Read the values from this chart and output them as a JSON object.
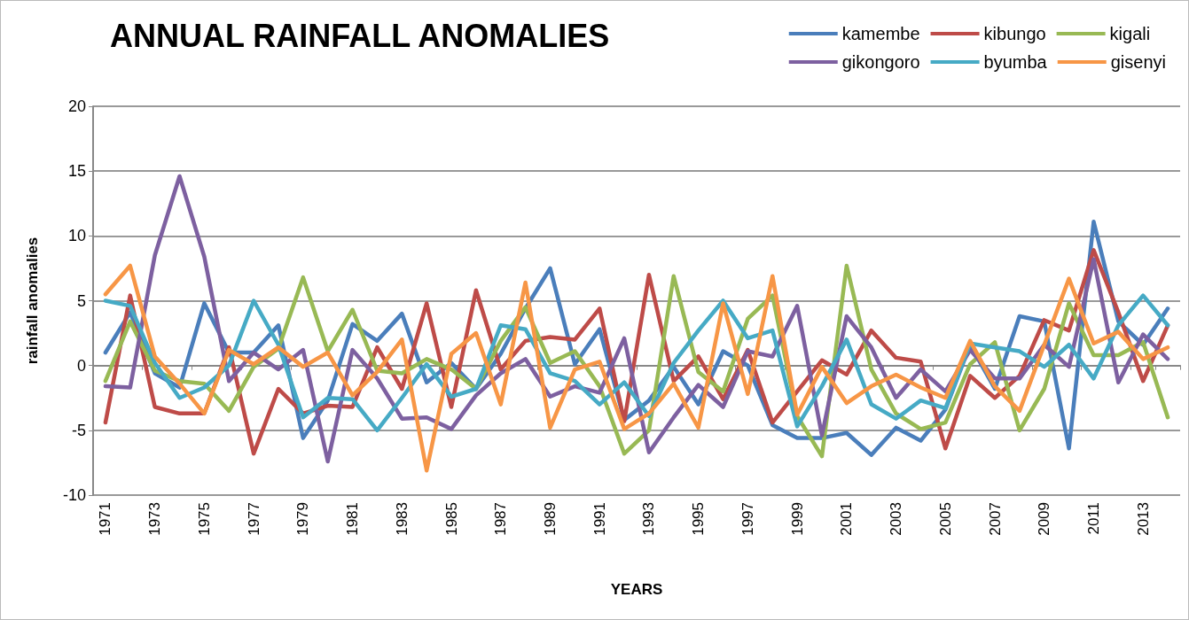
{
  "chart_data": {
    "type": "line",
    "title": "ANNUAL RAINFALL ANOMALIES",
    "xlabel": "YEARS",
    "ylabel": "rainfall anomalies",
    "categories": [
      "1971",
      null,
      "1973",
      null,
      "1975",
      null,
      "1977",
      null,
      "1979",
      null,
      "1981",
      null,
      "1983",
      null,
      "1985",
      null,
      "1987",
      null,
      "1989",
      null,
      "1991",
      null,
      "1993",
      null,
      "1995",
      null,
      "1997",
      null,
      "1999",
      null,
      "2001",
      null,
      "2003",
      null,
      "2005",
      null,
      "2007",
      null,
      "2009",
      null,
      "2011",
      null,
      "2013",
      null
    ],
    "series": [
      {
        "name": "kamembe",
        "color": "#4a7ebb",
        "values": [
          1.0,
          4.1,
          -0.6,
          -1.7,
          4.8,
          1.0,
          1.0,
          3.1,
          -5.6,
          -2.7,
          3.2,
          1.9,
          4.0,
          -1.3,
          0.2,
          -1.8,
          0.9,
          4.4,
          7.5,
          0.1,
          2.8,
          -4.2,
          -2.7,
          -0.1,
          -3.0,
          1.1,
          0.0,
          -4.6,
          -5.6,
          -5.6,
          -5.2,
          -6.9,
          -4.8,
          -5.8,
          -3.4,
          1.6,
          -1.8,
          3.8,
          3.4,
          -6.4,
          11.1,
          3.4,
          1.6,
          4.4
        ]
      },
      {
        "name": "kibungo",
        "color": "#be4b48",
        "values": [
          -4.4,
          5.4,
          -3.2,
          -3.7,
          -3.7,
          1.4,
          -6.8,
          -1.8,
          -3.7,
          -3.1,
          -3.2,
          1.4,
          -1.8,
          4.8,
          -3.2,
          5.8,
          -0.3,
          1.9,
          2.2,
          2.0,
          4.4,
          -4.3,
          7.0,
          -1.2,
          0.7,
          -2.6,
          1.2,
          -4.4,
          -2.0,
          0.4,
          -0.7,
          2.7,
          0.6,
          0.3,
          -6.4,
          -0.8,
          -2.5,
          -0.8,
          3.5,
          2.7,
          8.9,
          4.1,
          -1.2,
          3.1
        ]
      },
      {
        "name": "kigali",
        "color": "#98b954",
        "values": [
          -1.2,
          3.4,
          -0.4,
          -1.2,
          -1.4,
          -3.5,
          -0.1,
          1.3,
          6.8,
          1.1,
          4.3,
          -0.4,
          -0.6,
          0.5,
          -0.3,
          -1.8,
          1.9,
          4.5,
          0.2,
          1.1,
          -1.6,
          -6.8,
          -5.0,
          6.9,
          -0.5,
          -2.0,
          3.6,
          5.4,
          -3.9,
          -7.0,
          7.7,
          -0.3,
          -3.7,
          -4.9,
          -4.4,
          0.1,
          1.8,
          -5.0,
          -1.8,
          4.8,
          0.8,
          0.8,
          1.8,
          -4.0
        ]
      },
      {
        "name": "gikongoro",
        "color": "#7d60a0",
        "values": [
          -1.6,
          -1.7,
          8.5,
          14.6,
          8.4,
          -1.2,
          1.0,
          -0.3,
          1.2,
          -7.4,
          1.2,
          -1.0,
          -4.1,
          -4.0,
          -4.9,
          -2.3,
          -0.6,
          0.5,
          -2.4,
          -1.6,
          -2.1,
          2.1,
          -6.7,
          -4.0,
          -1.5,
          -3.2,
          1.1,
          0.7,
          4.6,
          -5.4,
          3.8,
          1.4,
          -2.5,
          -0.3,
          -2.0,
          1.2,
          -1.0,
          -1.0,
          1.6,
          -0.1,
          8.2,
          -1.3,
          2.4,
          0.5
        ]
      },
      {
        "name": "byumba",
        "color": "#46aac5",
        "values": [
          5.0,
          4.6,
          0.2,
          -2.5,
          -1.7,
          0.0,
          5.0,
          1.6,
          -4.0,
          -2.5,
          -2.6,
          -5.0,
          -2.5,
          0.1,
          -2.4,
          -1.8,
          3.1,
          2.8,
          -0.6,
          -1.2,
          -3.0,
          -1.3,
          -3.9,
          0.2,
          2.7,
          5.0,
          2.1,
          2.7,
          -4.7,
          -1.6,
          2.0,
          -3.0,
          -4.1,
          -2.7,
          -3.3,
          1.7,
          1.4,
          1.1,
          -0.1,
          1.6,
          -1.0,
          3.1,
          5.4,
          3.1
        ]
      },
      {
        "name": "gisenyi",
        "color": "#f79646",
        "values": [
          5.5,
          7.7,
          0.7,
          -1.4,
          -3.7,
          1.2,
          0.1,
          1.4,
          -0.1,
          1.0,
          -2.3,
          -0.5,
          2.0,
          -8.1,
          0.9,
          2.5,
          -3.0,
          6.4,
          -4.8,
          -0.3,
          0.3,
          -4.9,
          -3.7,
          -1.4,
          -4.8,
          4.8,
          -2.2,
          6.9,
          -3.8,
          -0.1,
          -2.9,
          -1.6,
          -0.7,
          -1.7,
          -2.5,
          1.9,
          -1.6,
          -3.5,
          1.6,
          6.7,
          1.7,
          2.6,
          0.5,
          1.4
        ]
      }
    ],
    "ylim": [
      -10,
      20
    ],
    "yticks": [
      -10,
      -5,
      0,
      5,
      10,
      15,
      20
    ],
    "grid": "y",
    "legend": "top right",
    "marker": "none",
    "line_style": "solid"
  }
}
